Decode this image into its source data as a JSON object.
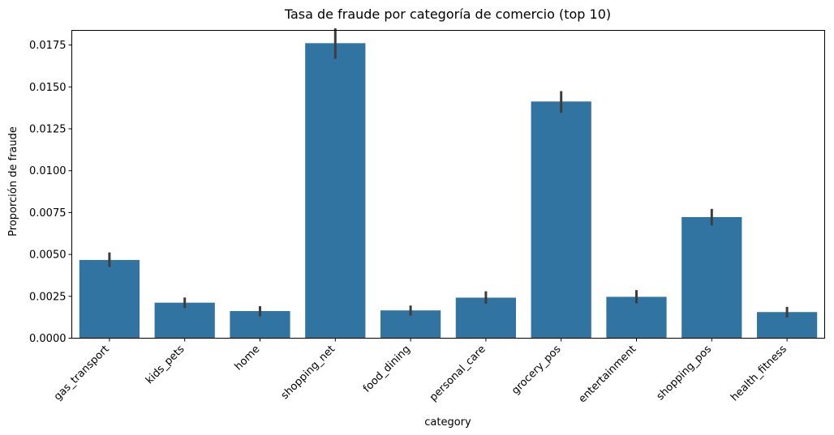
{
  "chart_data": {
    "type": "bar",
    "title": "Tasa de fraude por categoría de comercio (top 10)",
    "xlabel": "category",
    "ylabel": "Proporción de fraude",
    "categories": [
      "gas_transport",
      "kids_pets",
      "home",
      "shopping_net",
      "food_dining",
      "personal_care",
      "grocery_pos",
      "entertainment",
      "shopping_pos",
      "health_fitness"
    ],
    "values": [
      0.00467,
      0.00212,
      0.00162,
      0.01761,
      0.00166,
      0.00242,
      0.01413,
      0.00247,
      0.00723,
      0.00156
    ],
    "error_low": [
      0.00425,
      0.0018,
      0.0013,
      0.01668,
      0.00135,
      0.00206,
      0.01345,
      0.00208,
      0.00673,
      0.00123
    ],
    "error_high": [
      0.00512,
      0.00243,
      0.00191,
      0.0185,
      0.00195,
      0.0028,
      0.01475,
      0.00287,
      0.00772,
      0.00187
    ],
    "ylim": [
      0,
      0.018375
    ],
    "yticks": [
      "0.0000",
      "0.0025",
      "0.0050",
      "0.0075",
      "0.0100",
      "0.0125",
      "0.0150",
      "0.0175"
    ],
    "ytick_values": [
      0,
      0.0025,
      0.005,
      0.0075,
      0.01,
      0.0125,
      0.015,
      0.0175
    ],
    "grid": false,
    "colors": {
      "bar": "#3274a1",
      "error": "#3d3d3d",
      "axis": "#000000"
    }
  }
}
